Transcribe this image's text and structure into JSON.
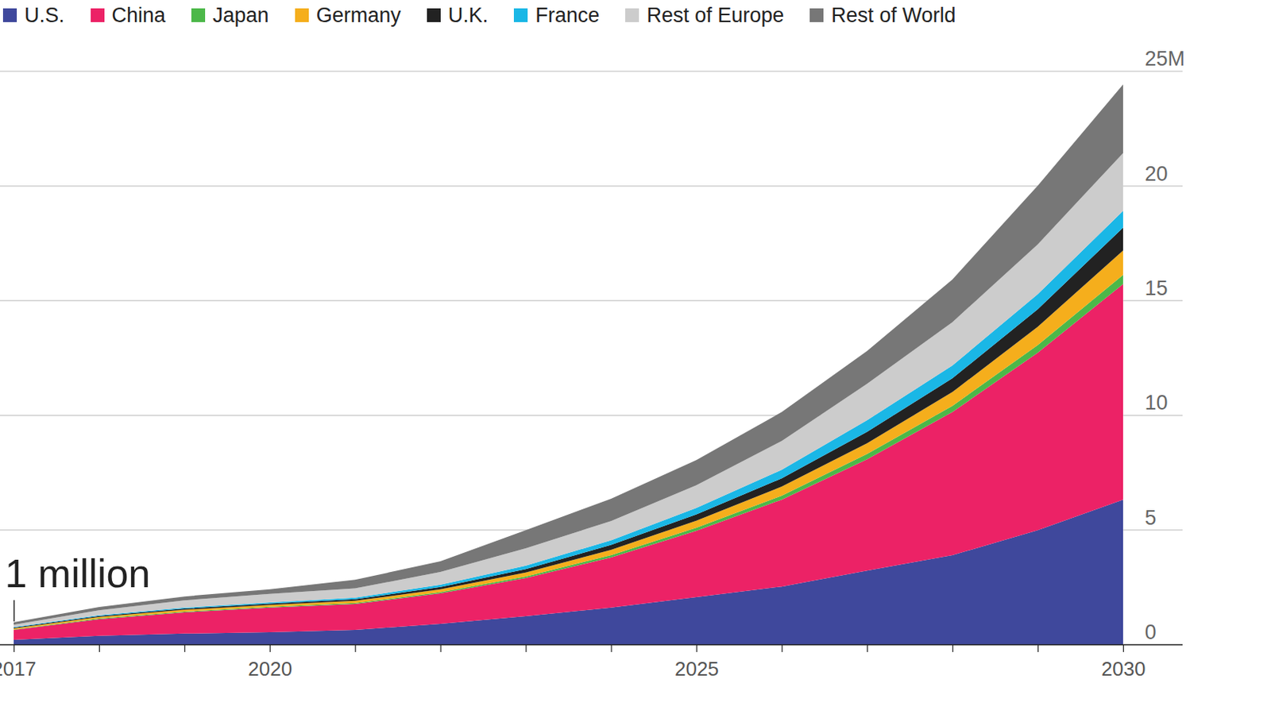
{
  "chart_data": {
    "type": "area",
    "stacked": true,
    "grid": true,
    "legend": "top",
    "x": [
      2017,
      2018,
      2019,
      2020,
      2021,
      2022,
      2023,
      2024,
      2025,
      2026,
      2027,
      2028,
      2029,
      2030
    ],
    "xlim": [
      2017,
      2030
    ],
    "xticks": [
      2017,
      2020,
      2025,
      2030
    ],
    "ylim": [
      0,
      25
    ],
    "yticks": [
      0,
      5,
      10,
      15,
      20,
      {
        "value": 25,
        "label": "25M"
      }
    ],
    "annotations": [
      {
        "text": "1 million",
        "x": 2017,
        "y": 1
      }
    ],
    "series": [
      {
        "name": "U.S.",
        "color": "#3f489c",
        "values": [
          0.2,
          0.37,
          0.47,
          0.53,
          0.63,
          0.9,
          1.23,
          1.6,
          2.06,
          2.52,
          3.22,
          3.89,
          4.98,
          6.31
        ]
      },
      {
        "name": "China",
        "color": "#ec2266",
        "values": [
          0.43,
          0.73,
          0.93,
          1.07,
          1.13,
          1.33,
          1.66,
          2.19,
          2.89,
          3.79,
          4.85,
          6.24,
          7.74,
          9.4
        ]
      },
      {
        "name": "Japan",
        "color": "#4cb849",
        "values": [
          0.02,
          0.03,
          0.03,
          0.04,
          0.04,
          0.05,
          0.07,
          0.1,
          0.14,
          0.17,
          0.23,
          0.27,
          0.33,
          0.4
        ]
      },
      {
        "name": "Germany",
        "color": "#f5ae1c",
        "values": [
          0.05,
          0.07,
          0.08,
          0.08,
          0.1,
          0.12,
          0.17,
          0.23,
          0.3,
          0.4,
          0.47,
          0.6,
          0.8,
          1.06
        ]
      },
      {
        "name": "U.K.",
        "color": "#222222",
        "values": [
          0.03,
          0.04,
          0.05,
          0.06,
          0.07,
          0.1,
          0.15,
          0.22,
          0.28,
          0.36,
          0.5,
          0.6,
          0.76,
          1.0
        ]
      },
      {
        "name": "France",
        "color": "#1ab7e6",
        "values": [
          0.03,
          0.03,
          0.04,
          0.05,
          0.07,
          0.1,
          0.15,
          0.2,
          0.28,
          0.37,
          0.5,
          0.56,
          0.66,
          0.73
        ]
      },
      {
        "name": "Rest of Europe",
        "color": "#cccccc",
        "values": [
          0.1,
          0.22,
          0.32,
          0.37,
          0.4,
          0.56,
          0.76,
          0.84,
          0.99,
          1.26,
          1.59,
          1.89,
          2.17,
          2.52
        ]
      },
      {
        "name": "Rest of World",
        "color": "#777777",
        "values": [
          0.1,
          0.14,
          0.17,
          0.2,
          0.38,
          0.46,
          0.79,
          0.97,
          1.1,
          1.26,
          1.43,
          1.86,
          2.56,
          2.99
        ]
      }
    ]
  }
}
